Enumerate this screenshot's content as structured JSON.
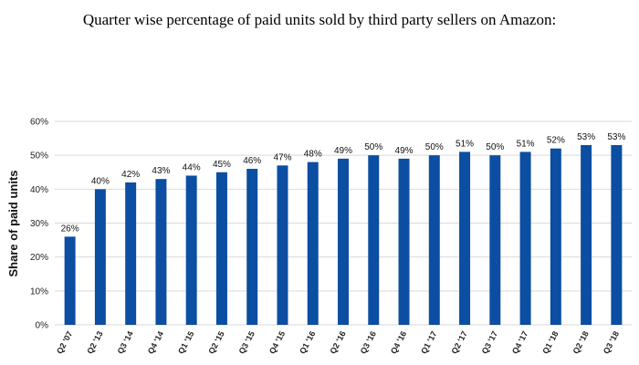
{
  "chart_data": {
    "type": "bar",
    "title": "Quarter wise percentage of paid units sold by third party sellers on Amazon:",
    "xlabel": "",
    "ylabel": "Share of paid units",
    "categories": [
      "Q2 '07",
      "Q2 '13",
      "Q3 '14",
      "Q4 '14",
      "Q1 '15",
      "Q2 '15",
      "Q3 '15",
      "Q4 '15",
      "Q1 '16",
      "Q2 '16",
      "Q3 '16",
      "Q4 '16",
      "Q1 '17",
      "Q2 '17",
      "Q3 '17",
      "Q4 '17",
      "Q1 '18",
      "Q2 '18",
      "Q3 '18"
    ],
    "values": [
      26,
      40,
      42,
      43,
      44,
      45,
      46,
      47,
      48,
      49,
      50,
      49,
      50,
      51,
      50,
      51,
      52,
      53,
      53
    ],
    "data_labels": [
      "26%",
      "40%",
      "42%",
      "43%",
      "44%",
      "45%",
      "46%",
      "47%",
      "48%",
      "49%",
      "50%",
      "49%",
      "50%",
      "51%",
      "50%",
      "51%",
      "52%",
      "53%",
      "53%"
    ],
    "ylim": [
      0,
      60
    ],
    "yticks": [
      0,
      10,
      20,
      30,
      40,
      50,
      60
    ],
    "ytick_labels": [
      "0%",
      "10%",
      "20%",
      "30%",
      "40%",
      "50%",
      "60%"
    ],
    "grid": true,
    "bar_color": "#0b4ea2",
    "grid_color": "#d9d9d9"
  }
}
